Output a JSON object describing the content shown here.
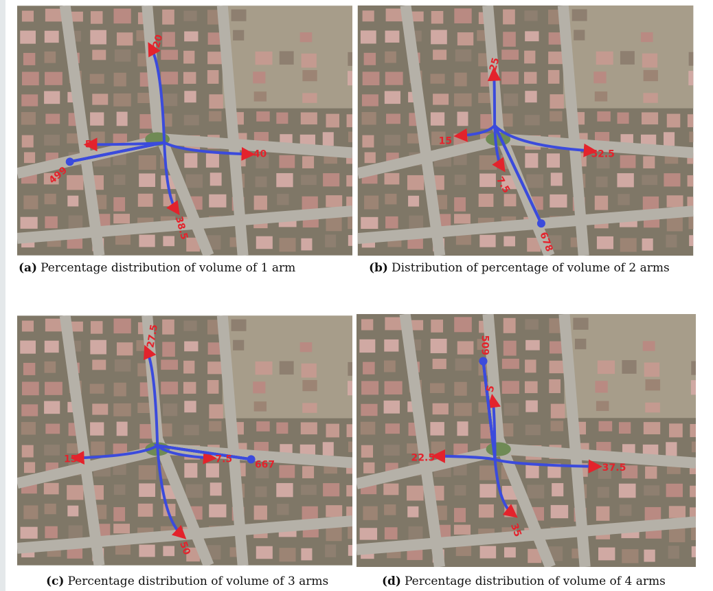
{
  "panels": [
    {
      "caption": {
        "label": "(a)",
        "text": "Percentage distribution of volume of 1 arm"
      },
      "labels": [
        499,
        20,
        5,
        40,
        38.5
      ]
    },
    {
      "caption": {
        "label": "(b)",
        "text": "Distribution of percentage of volume of 2 arms"
      },
      "labels": [
        678,
        25,
        15,
        7.5,
        52.5
      ]
    },
    {
      "caption": {
        "label": "(c)",
        "text": "Percentage distribution of volume of 3 arms"
      },
      "labels": [
        667,
        27.5,
        15,
        7.5,
        50
      ]
    },
    {
      "caption": {
        "label": "(d)",
        "text": "Percentage distribution of volume of 4 arms"
      },
      "labels": [
        509,
        5,
        22.5,
        37.5,
        35
      ]
    }
  ]
}
